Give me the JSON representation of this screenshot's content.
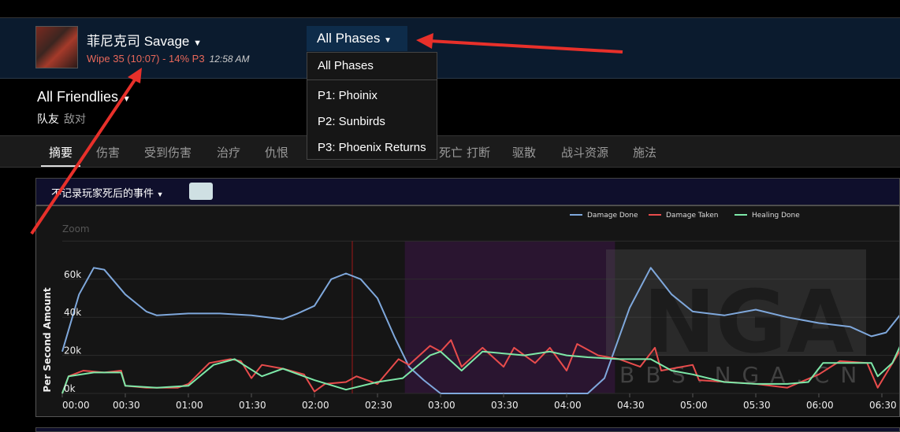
{
  "header": {
    "title": "菲尼克司 Savage",
    "subtitle": "Wipe 35 (10:07) - 14% P3",
    "time": "12:58 AM",
    "phase_button": "All Phases"
  },
  "phase_menu": {
    "items": [
      "All Phases",
      "P1: Phoinix",
      "P2: Sunbirds",
      "P3: Phoenix Returns"
    ]
  },
  "filter": {
    "label": "All Friendlies",
    "tabs": [
      "队友",
      "敌对"
    ]
  },
  "tabs": [
    {
      "label": "摘要",
      "active": true
    },
    {
      "label": "伤害"
    },
    {
      "label": "受到伤害"
    },
    {
      "label": "治疗"
    },
    {
      "label": "仇恨"
    },
    {
      "label": "死亡"
    },
    {
      "label": "打断"
    },
    {
      "label": "驱散"
    },
    {
      "label": "战斗资源"
    },
    {
      "label": "施法"
    }
  ],
  "panel": {
    "death_filter": "不记录玩家死后的事件"
  },
  "watermark": {
    "logo": "NGA",
    "site": "BBS.NGA.CN"
  },
  "chart_data": {
    "type": "line",
    "ylabel": "Per Second Amount",
    "zoom_label": "Zoom",
    "legend_position": "top-right",
    "y_ticks": [
      "0k",
      "20k",
      "40k",
      "60k"
    ],
    "ylim": [
      0,
      80000
    ],
    "x_ticks": [
      "00:00",
      "00:30",
      "01:00",
      "01:30",
      "02:00",
      "02:30",
      "03:00",
      "03:30",
      "04:00",
      "04:30",
      "05:00",
      "05:30",
      "06:00",
      "06:30"
    ],
    "x_unit": "seconds",
    "grid": true,
    "highlight_band": {
      "start": 163,
      "end": 263,
      "color": "#2a1530"
    },
    "marker_line": {
      "x": 138,
      "color": "#a01818"
    },
    "series": [
      {
        "name": "Damage Done",
        "color": "#7fa8dc",
        "x": [
          0,
          8,
          15,
          20,
          30,
          40,
          45,
          60,
          75,
          90,
          105,
          112,
          120,
          128,
          135,
          142,
          150,
          158,
          165,
          172,
          180,
          240,
          250,
          258,
          270,
          280,
          290,
          300,
          315,
          330,
          345,
          360,
          375,
          385,
          392,
          405
        ],
        "y": [
          22000,
          52000,
          66000,
          65000,
          52000,
          43000,
          41000,
          42000,
          42000,
          41000,
          39000,
          42000,
          46000,
          60000,
          63000,
          60000,
          50000,
          30000,
          14000,
          7000,
          0,
          0,
          0,
          8000,
          45000,
          66000,
          52000,
          43000,
          41000,
          44000,
          40000,
          37000,
          35000,
          30000,
          32000,
          50000
        ]
      },
      {
        "name": "Damage Taken",
        "color": "#e84c4c",
        "x": [
          0,
          3,
          10,
          20,
          28,
          30,
          40,
          55,
          60,
          70,
          80,
          85,
          90,
          95,
          105,
          115,
          120,
          125,
          135,
          140,
          150,
          160,
          165,
          175,
          180,
          185,
          190,
          200,
          210,
          215,
          225,
          232,
          240,
          245,
          255,
          265,
          275,
          282,
          285,
          295,
          300,
          303,
          330,
          345,
          360,
          370,
          383,
          388,
          400,
          405
        ],
        "y": [
          0,
          9000,
          12000,
          11000,
          12000,
          4000,
          3000,
          3000,
          5000,
          16000,
          18000,
          17000,
          8000,
          15000,
          13000,
          10000,
          1000,
          5000,
          6000,
          9000,
          5000,
          18000,
          15000,
          25000,
          22000,
          28000,
          14000,
          24000,
          14000,
          24000,
          16000,
          24000,
          12000,
          26000,
          20000,
          18000,
          14000,
          24000,
          12000,
          14000,
          15000,
          7000,
          5000,
          3000,
          10000,
          17000,
          16000,
          3000,
          25000,
          37000
        ]
      },
      {
        "name": "Healing Done",
        "color": "#7de8a8",
        "x": [
          0,
          3,
          15,
          28,
          30,
          45,
          60,
          72,
          82,
          95,
          105,
          120,
          135,
          150,
          162,
          175,
          180,
          190,
          200,
          220,
          232,
          240,
          250,
          265,
          280,
          290,
          300,
          315,
          330,
          345,
          355,
          362,
          385,
          388,
          395,
          400,
          405
        ],
        "y": [
          0,
          9000,
          11000,
          11000,
          4000,
          3000,
          4000,
          15000,
          18000,
          9000,
          13000,
          7000,
          2000,
          6000,
          8000,
          20000,
          22000,
          12000,
          22000,
          20000,
          22000,
          20000,
          19000,
          18000,
          18000,
          12000,
          10000,
          6000,
          5000,
          5000,
          6000,
          16000,
          16000,
          9000,
          16000,
          28000,
          40000
        ]
      }
    ]
  }
}
